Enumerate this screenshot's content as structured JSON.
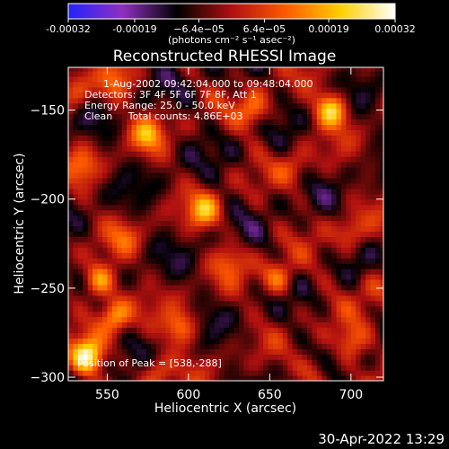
{
  "chart_data": {
    "type": "heatmap",
    "title": "Reconstructed RHESSI Image",
    "xlabel": "Heliocentric X (arcsec)",
    "ylabel": "Heliocentric Y (arcsec)",
    "xlim": [
      526,
      720
    ],
    "ylim": [
      -302,
      -126
    ],
    "x_ticks": [
      550,
      600,
      650,
      700
    ],
    "y_ticks": [
      -150,
      -200,
      -250,
      -300
    ],
    "colorbar": {
      "range": [
        -0.00032,
        0.00032
      ],
      "unit_label": "(photons cm⁻² s⁻¹ asec⁻²)",
      "tick_values": [
        -0.00032,
        -0.00019,
        -6.4e-05,
        6.4e-05,
        0.00019,
        0.00032
      ],
      "tick_labels": [
        "-0.00032",
        "-0.00019",
        "−6.4e−05",
        "6.4e−05",
        "0.00019",
        "0.00032"
      ],
      "colors": [
        "#2222ff",
        "#9030c0",
        "#000000",
        "#b01010",
        "#ff5a00",
        "#ffd000",
        "#ffffff"
      ]
    },
    "info_lines": [
      "1-Aug-2002 09:42:04.000 to 09:48:04.000",
      "Detectors: 3F 4F 5F 6F 7F 8F, Att 1",
      "Energy Range: 25.0 - 50.0 keV",
      "Clean     Total counts: 4.86E+03"
    ],
    "peak_label": "Position of Peak = [538,-288]",
    "peak": {
      "x": 538,
      "y": -288
    },
    "hotspots": [
      {
        "x": 538,
        "y": -288,
        "value": 0.00032
      },
      {
        "x": 688,
        "y": -150,
        "value": 0.00028
      },
      {
        "x": 545,
        "y": -246,
        "value": 0.00026
      },
      {
        "x": 555,
        "y": -265,
        "value": 0.00022
      },
      {
        "x": 610,
        "y": -206,
        "value": 0.0002
      },
      {
        "x": 575,
        "y": -163,
        "value": 0.00018
      },
      {
        "x": 640,
        "y": -150,
        "value": 0.00017
      },
      {
        "x": 595,
        "y": -272,
        "value": 0.00018
      },
      {
        "x": 655,
        "y": -244,
        "value": 0.00019
      },
      {
        "x": 700,
        "y": -280,
        "value": 0.00016
      },
      {
        "x": 535,
        "y": -181,
        "value": 0.00012
      },
      {
        "x": 555,
        "y": -135,
        "value": 0.00014
      },
      {
        "x": 530,
        "y": -140,
        "value": 0.00013
      },
      {
        "x": 700,
        "y": -218,
        "value": 0.00012
      },
      {
        "x": 625,
        "y": -235,
        "value": 0.00011
      },
      {
        "x": 665,
        "y": -182,
        "value": 0.0001
      },
      {
        "x": 715,
        "y": -250,
        "value": 0.00012
      },
      {
        "x": 560,
        "y": -222,
        "value": 0.0001
      },
      {
        "x": 580,
        "y": -296,
        "value": 0.00014
      },
      {
        "x": 678,
        "y": -296,
        "value": 0.00013
      }
    ]
  },
  "footer": {
    "timestamp": "30-Apr-2022 13:29"
  }
}
